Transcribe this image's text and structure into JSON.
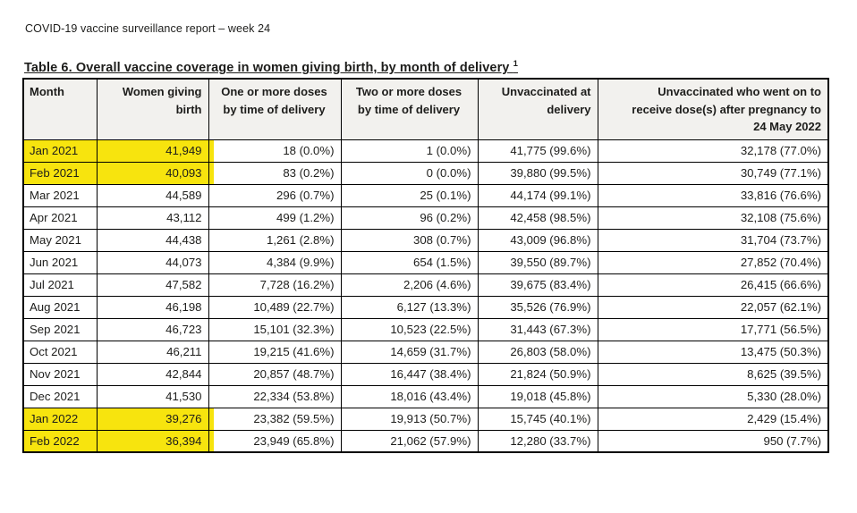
{
  "page": {
    "header_text": "COVID-19 vaccine surveillance report – week 24",
    "table_title": "Table 6. Overall vaccine coverage in women giving birth, by month of delivery",
    "table_title_superscript": "1"
  },
  "colors": {
    "highlight": "#f7e40e",
    "header_background": "#f2f1ee",
    "border": "#000000",
    "text": "#1d1d1b"
  },
  "table": {
    "columns": [
      {
        "key": "month",
        "label": "Month",
        "align": "left"
      },
      {
        "key": "women-giving-birth",
        "label": "Women giving\nbirth",
        "align": "right"
      },
      {
        "key": "one-or-more-doses",
        "label": "One or more doses\nby time of delivery",
        "align": "center"
      },
      {
        "key": "two-or-more-doses",
        "label": "Two or more doses\nby time of delivery",
        "align": "center"
      },
      {
        "key": "unvaccinated-at-delivery",
        "label": "Unvaccinated at\ndelivery",
        "align": "right"
      },
      {
        "key": "unvaccinated-after-pregnancy",
        "label": "Unvaccinated who went on to\nreceive dose(s) after pregnancy to\n24 May 2022",
        "align": "right"
      }
    ],
    "data_align": [
      "left",
      "right",
      "right",
      "right",
      "right",
      "right"
    ],
    "rows": [
      {
        "highlighted": true,
        "cells": [
          "Jan 2021",
          "41,949",
          "18 (0.0%)",
          "1 (0.0%)",
          "41,775 (99.6%)",
          "32,178 (77.0%)"
        ]
      },
      {
        "highlighted": true,
        "cells": [
          "Feb 2021",
          "40,093",
          "83 (0.2%)",
          "0 (0.0%)",
          "39,880 (99.5%)",
          "30,749 (77.1%)"
        ]
      },
      {
        "highlighted": false,
        "cells": [
          "Mar 2021",
          "44,589",
          "296 (0.7%)",
          "25 (0.1%)",
          "44,174 (99.1%)",
          "33,816 (76.6%)"
        ]
      },
      {
        "highlighted": false,
        "cells": [
          "Apr 2021",
          "43,112",
          "499 (1.2%)",
          "96 (0.2%)",
          "42,458 (98.5%)",
          "32,108 (75.6%)"
        ]
      },
      {
        "highlighted": false,
        "cells": [
          "May 2021",
          "44,438",
          "1,261 (2.8%)",
          "308 (0.7%)",
          "43,009 (96.8%)",
          "31,704 (73.7%)"
        ]
      },
      {
        "highlighted": false,
        "cells": [
          "Jun 2021",
          "44,073",
          "4,384 (9.9%)",
          "654 (1.5%)",
          "39,550 (89.7%)",
          "27,852 (70.4%)"
        ]
      },
      {
        "highlighted": false,
        "cells": [
          "Jul 2021",
          "47,582",
          "7,728 (16.2%)",
          "2,206 (4.6%)",
          "39,675 (83.4%)",
          "26,415 (66.6%)"
        ]
      },
      {
        "highlighted": false,
        "cells": [
          "Aug 2021",
          "46,198",
          "10,489 (22.7%)",
          "6,127 (13.3%)",
          "35,526 (76.9%)",
          "22,057 (62.1%)"
        ]
      },
      {
        "highlighted": false,
        "cells": [
          "Sep 2021",
          "46,723",
          "15,101 (32.3%)",
          "10,523 (22.5%)",
          "31,443 (67.3%)",
          "17,771 (56.5%)"
        ]
      },
      {
        "highlighted": false,
        "cells": [
          "Oct 2021",
          "46,211",
          "19,215 (41.6%)",
          "14,659 (31.7%)",
          "26,803 (58.0%)",
          "13,475 (50.3%)"
        ]
      },
      {
        "highlighted": false,
        "cells": [
          "Nov 2021",
          "42,844",
          "20,857 (48.7%)",
          "16,447 (38.4%)",
          "21,824 (50.9%)",
          "8,625 (39.5%)"
        ]
      },
      {
        "highlighted": false,
        "cells": [
          "Dec 2021",
          "41,530",
          "22,334 (53.8%)",
          "18,016 (43.4%)",
          "19,018 (45.8%)",
          "5,330 (28.0%)"
        ]
      },
      {
        "highlighted": true,
        "cells": [
          "Jan 2022",
          "39,276",
          "23,382 (59.5%)",
          "19,913 (50.7%)",
          "15,745 (40.1%)",
          "2,429 (15.4%)"
        ]
      },
      {
        "highlighted": true,
        "cells": [
          "Feb 2022",
          "36,394",
          "23,949 (65.8%)",
          "21,062 (57.9%)",
          "12,280 (33.7%)",
          "950 (7.7%)"
        ]
      }
    ]
  }
}
